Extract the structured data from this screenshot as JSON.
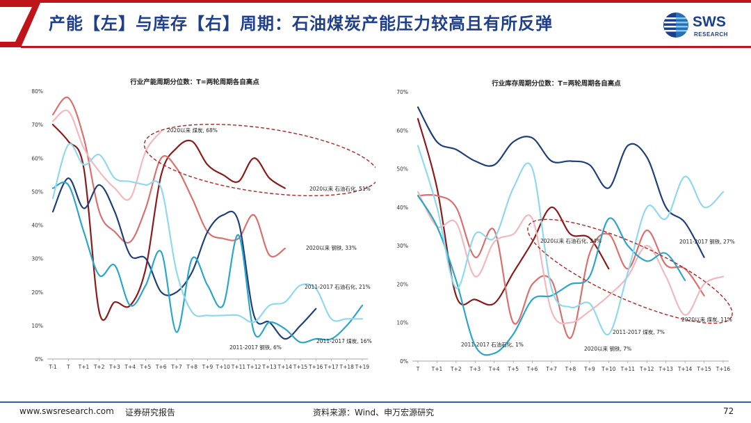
{
  "header": {
    "title": "产能【左】与库存【右】周期：石油煤炭产能压力较高且有所反弹",
    "logo_main": "SWS",
    "logo_sub": "RESEARCH",
    "brand_red": "#c0141b",
    "brand_blue": "#1b3f8d"
  },
  "footer": {
    "website": "www.swsresearch.com",
    "doc_type": "证券研究报告",
    "source": "资料来源：Wind、申万宏源研究",
    "page_number": "72"
  },
  "chart_data": [
    {
      "type": "line",
      "title": "行业产能周期分位数：T=两轮周期各自高点",
      "categories": [
        "T-1",
        "T",
        "T+1",
        "T+2",
        "T+3",
        "T+4",
        "T+5",
        "T+6",
        "T+7",
        "T+8",
        "T+9",
        "T+10",
        "T+11",
        "T+12",
        "T+13",
        "T+14",
        "T+15",
        "T+16",
        "T+17",
        "T+18",
        "T+19"
      ],
      "ylim": [
        0,
        80
      ],
      "yticks": [
        "0%",
        "10%",
        "20%",
        "30%",
        "40%",
        "50%",
        "60%",
        "70%",
        "80%"
      ],
      "series": [
        {
          "color": "#8b1a1a",
          "values": [
            70,
            65,
            57,
            14,
            17,
            16,
            27,
            55,
            63,
            65,
            58,
            55,
            53,
            60,
            54,
            51,
            null,
            null,
            null,
            null,
            null
          ]
        },
        {
          "color": "#d9706e",
          "values": [
            73,
            78,
            66,
            44,
            38,
            35,
            45,
            60,
            57,
            48,
            38,
            36,
            36,
            43,
            31,
            33,
            null,
            null,
            null,
            null,
            null
          ]
        },
        {
          "color": "#f2b8bc",
          "values": [
            71,
            74,
            63,
            56,
            51,
            48,
            62,
            68,
            null,
            null,
            null,
            null,
            null,
            null,
            null,
            null,
            null,
            null,
            null,
            null,
            null
          ]
        },
        {
          "color": "#1f3f7a",
          "values": [
            44,
            54,
            45,
            52,
            44,
            31,
            30,
            20,
            20,
            26,
            38,
            43,
            41,
            13,
            11,
            6,
            10,
            15,
            null,
            null,
            null
          ]
        },
        {
          "color": "#2aa6c8",
          "values": [
            51,
            52,
            38,
            25,
            28,
            16,
            22,
            32,
            8,
            30,
            22,
            16,
            37,
            8,
            11,
            9,
            5,
            6,
            6,
            10,
            16
          ]
        },
        {
          "color": "#8fd8ee",
          "values": [
            48,
            64,
            58,
            61,
            54,
            53,
            52,
            51,
            26,
            14,
            13,
            13,
            13,
            11,
            16,
            17,
            22,
            21,
            12,
            12,
            12
          ]
        }
      ],
      "annotations": [
        "2020以来 煤炭, 68%",
        "2020以来 石油石化, 51%",
        "2020以来 钢铁, 33%",
        "2011-2017 石油石化, 21%",
        "2011-2017 煤炭, 16%",
        "2011-2017 钢铁, 6%"
      ]
    },
    {
      "type": "line",
      "title": "行业库存周期分位数：T=两轮周期各自高点",
      "categories": [
        "T",
        "T+1",
        "T+2",
        "T+3",
        "T+4",
        "T+5",
        "T+6",
        "T+7",
        "T+8",
        "T+9",
        "T+10",
        "T+11",
        "T+12",
        "T+13",
        "T+14",
        "T+15",
        "T+16"
      ],
      "ylim": [
        0,
        70
      ],
      "yticks": [
        "0%",
        "10%",
        "20%",
        "30%",
        "40%",
        "50%",
        "60%",
        "70%"
      ],
      "series": [
        {
          "color": "#1f3f7a",
          "values": [
            66,
            57,
            55,
            52,
            51,
            57,
            58,
            52,
            52,
            51,
            45,
            56,
            53,
            40,
            36,
            27,
            null
          ]
        },
        {
          "color": "#8b1a1a",
          "values": [
            63,
            45,
            17,
            16,
            15,
            23,
            31,
            40,
            33,
            32,
            24,
            null,
            null,
            null,
            null,
            null,
            null
          ]
        },
        {
          "color": "#d9706e",
          "values": [
            43,
            43,
            40,
            27,
            34,
            10,
            20,
            21,
            6,
            28,
            33,
            24,
            34,
            25,
            24,
            17,
            null
          ]
        },
        {
          "color": "#f2b8bc",
          "values": [
            44,
            35,
            36,
            22,
            31,
            33,
            37,
            13,
            10,
            13,
            17,
            22,
            30,
            22,
            12,
            20,
            22
          ]
        },
        {
          "color": "#2aa6c8",
          "values": [
            43,
            35,
            21,
            4,
            2,
            7,
            16,
            17,
            20,
            22,
            37,
            30,
            26,
            28,
            21,
            null,
            null
          ]
        },
        {
          "color": "#8fd8ee",
          "values": [
            56,
            40,
            19,
            33,
            32,
            45,
            50,
            19,
            14,
            15,
            7,
            23,
            40,
            37,
            48,
            40,
            44
          ]
        }
      ],
      "annotations": [
        "2020以来 石油石化, 24%",
        "2011-2017 钢铁, 27%",
        "2020以来 煤炭, 11%",
        "2011-2017 煤炭, 7%",
        "2020以来 钢铁, 7%",
        "2011-2017 石油石化, 1%"
      ]
    }
  ]
}
